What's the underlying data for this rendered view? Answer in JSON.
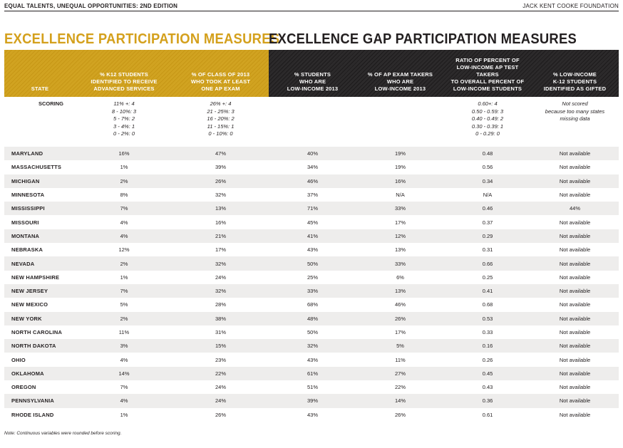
{
  "header": {
    "left": "EQUAL TALENTS, UNEQUAL OPPORTUNITIES: 2ND EDITION",
    "right": "JACK KENT COOKE FOUNDATION"
  },
  "sections": {
    "participation": "EXCELLENCE PARTICIPATION MEASURES",
    "gap": "EXCELLENCE GAP PARTICIPATION MEASURES"
  },
  "colors": {
    "gold": "#d1a321",
    "dark": "#231f20",
    "shade": "#eeedec"
  },
  "columns": [
    "STATE",
    "% K12 STUDENTS\nIDENTIFIED TO RECEIVE\nADVANCED SERVICES",
    "% OF CLASS OF 2013\nWHO TOOK AT LEAST\nONE AP EXAM",
    "% STUDENTS\nWHO ARE\nLOW-INCOME 2013",
    "% OF AP EXAM TAKERS\nWHO ARE\nLOW-INCOME 2013",
    "RATIO OF PERCENT OF\nLOW-INCOME AP TEST TAKERS\nTO OVERALL PERCENT OF\nLOW-INCOME STUDENTS",
    "% LOW-INCOME\nK-12 STUDENTS\nIDENTIFIED AS GIFTED"
  ],
  "scoring": {
    "label": "SCORING",
    "col1": "11% +: 4\n8 - 10%: 3\n5 - 7%: 2\n3 - 4%: 1\n0 - 2%: 0",
    "col2": "26% +: 4\n21 - 25%: 3\n16 - 20%: 2\n11 - 15%: 1\n0 - 10%: 0",
    "col3": "",
    "col4": "",
    "col5": "0.60+: 4\n0.50 - 0.59: 3\n0.40 - 0.49: 2\n0.30 - 0.39: 1\n0 - 0.29: 0",
    "col6": "Not scored\nbecause too many states\nmissing data"
  },
  "rows": [
    [
      "MARYLAND",
      "16%",
      "47%",
      "40%",
      "19%",
      "0.48",
      "Not available"
    ],
    [
      "MASSACHUSETTS",
      "1%",
      "39%",
      "34%",
      "19%",
      "0.56",
      "Not available"
    ],
    [
      "MICHIGAN",
      "2%",
      "26%",
      "46%",
      "16%",
      "0.34",
      "Not available"
    ],
    [
      "MINNESOTA",
      "8%",
      "32%",
      "37%",
      "N/A",
      "N/A",
      "Not available"
    ],
    [
      "MISSISSIPPI",
      "7%",
      "13%",
      "71%",
      "33%",
      "0.46",
      "44%"
    ],
    [
      "MISSOURI",
      "4%",
      "16%",
      "45%",
      "17%",
      "0.37",
      "Not available"
    ],
    [
      "MONTANA",
      "4%",
      "21%",
      "41%",
      "12%",
      "0.29",
      "Not available"
    ],
    [
      "NEBRASKA",
      "12%",
      "17%",
      "43%",
      "13%",
      "0.31",
      "Not available"
    ],
    [
      "NEVADA",
      "2%",
      "32%",
      "50%",
      "33%",
      "0.66",
      "Not available"
    ],
    [
      "NEW HAMPSHIRE",
      "1%",
      "24%",
      "25%",
      "6%",
      "0.25",
      "Not available"
    ],
    [
      "NEW JERSEY",
      "7%",
      "32%",
      "33%",
      "13%",
      "0.41",
      "Not available"
    ],
    [
      "NEW MEXICO",
      "5%",
      "28%",
      "68%",
      "46%",
      "0.68",
      "Not available"
    ],
    [
      "NEW YORK",
      "2%",
      "38%",
      "48%",
      "26%",
      "0.53",
      "Not available"
    ],
    [
      "NORTH CAROLINA",
      "11%",
      "31%",
      "50%",
      "17%",
      "0.33",
      "Not available"
    ],
    [
      "NORTH DAKOTA",
      "3%",
      "15%",
      "32%",
      "5%",
      "0.16",
      "Not available"
    ],
    [
      "OHIO",
      "4%",
      "23%",
      "43%",
      "11%",
      "0.26",
      "Not available"
    ],
    [
      "OKLAHOMA",
      "14%",
      "22%",
      "61%",
      "27%",
      "0.45",
      "Not available"
    ],
    [
      "OREGON",
      "7%",
      "24%",
      "51%",
      "22%",
      "0.43",
      "Not available"
    ],
    [
      "PENNSYLVANIA",
      "4%",
      "24%",
      "39%",
      "14%",
      "0.36",
      "Not available"
    ],
    [
      "RHODE ISLAND",
      "1%",
      "26%",
      "43%",
      "26%",
      "0.61",
      "Not available"
    ]
  ],
  "note": "Note: Continuous variables were rounded before scoring."
}
